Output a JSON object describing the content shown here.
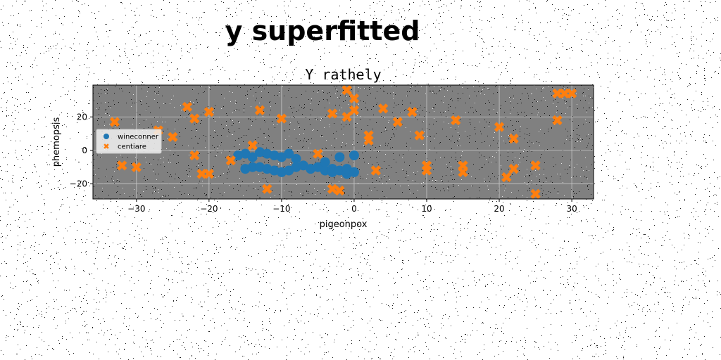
{
  "figure": {
    "suptitle": "y superfitted"
  },
  "chart_data": {
    "type": "scatter",
    "title": "Y rathely",
    "xlabel": "pigeonpox",
    "ylabel": "phemopsis",
    "xlim": [
      -36,
      33
    ],
    "ylim": [
      -29,
      39
    ],
    "xticks": [
      -30,
      -20,
      -10,
      0,
      10,
      20,
      30
    ],
    "yticks": [
      -20,
      0,
      20
    ],
    "xtick_labels": [
      "−30",
      "−20",
      "−10",
      "0",
      "10",
      "20",
      "30"
    ],
    "ytick_labels": [
      "−20",
      "0",
      "20"
    ],
    "grid": true,
    "background": "#808080",
    "legend_position": "center-left",
    "series": [
      {
        "name": "wineconner",
        "color": "#1f77b4",
        "marker": "circle",
        "points": [
          [
            -16,
            -3
          ],
          [
            -15,
            -2
          ],
          [
            -14,
            -10
          ],
          [
            -13,
            -10
          ],
          [
            -13,
            -1
          ],
          [
            -12,
            -11
          ],
          [
            -12,
            -2
          ],
          [
            -11,
            -3
          ],
          [
            -10,
            -13
          ],
          [
            -9,
            -12
          ],
          [
            -9,
            -2
          ],
          [
            -8,
            -5
          ],
          [
            -8,
            -10
          ],
          [
            -7,
            -9
          ],
          [
            -6,
            -11
          ],
          [
            -5,
            -10
          ],
          [
            -4,
            -12
          ],
          [
            -4,
            -7
          ],
          [
            -3,
            -11
          ],
          [
            -3,
            -13
          ],
          [
            -2,
            -4
          ],
          [
            -2,
            -12
          ],
          [
            -1,
            -14
          ],
          [
            -1,
            -11
          ],
          [
            0,
            -3
          ],
          [
            0,
            -13
          ],
          [
            -15,
            -11
          ],
          [
            -14,
            -4
          ],
          [
            -11,
            -12
          ],
          [
            -10,
            -4
          ]
        ]
      },
      {
        "name": "centiare",
        "color": "#ff7f0e",
        "marker": "x",
        "points": [
          [
            -33,
            17
          ],
          [
            -32,
            -9
          ],
          [
            -30,
            -10
          ],
          [
            -27,
            12
          ],
          [
            -25,
            8
          ],
          [
            -23,
            26
          ],
          [
            -22,
            19
          ],
          [
            -22,
            -3
          ],
          [
            -21,
            -14
          ],
          [
            -20,
            -14
          ],
          [
            -20,
            23
          ],
          [
            -17,
            -6
          ],
          [
            -14,
            3
          ],
          [
            -13,
            24
          ],
          [
            -12,
            -23
          ],
          [
            -10,
            19
          ],
          [
            -5,
            -2
          ],
          [
            -3,
            22
          ],
          [
            -3,
            -23
          ],
          [
            -2,
            -24
          ],
          [
            -1,
            20
          ],
          [
            -1,
            36
          ],
          [
            0,
            31
          ],
          [
            0,
            24
          ],
          [
            2,
            9
          ],
          [
            2,
            6
          ],
          [
            3,
            -12
          ],
          [
            4,
            25
          ],
          [
            6,
            17
          ],
          [
            8,
            23
          ],
          [
            9,
            9
          ],
          [
            10,
            -9
          ],
          [
            10,
            -12
          ],
          [
            14,
            18
          ],
          [
            15,
            -9
          ],
          [
            15,
            -13
          ],
          [
            20,
            14
          ],
          [
            21,
            -16
          ],
          [
            22,
            -11
          ],
          [
            22,
            7
          ],
          [
            25,
            -9
          ],
          [
            25,
            -26
          ],
          [
            28,
            18
          ],
          [
            28,
            34
          ],
          [
            29,
            34
          ],
          [
            30,
            34
          ]
        ]
      }
    ]
  }
}
